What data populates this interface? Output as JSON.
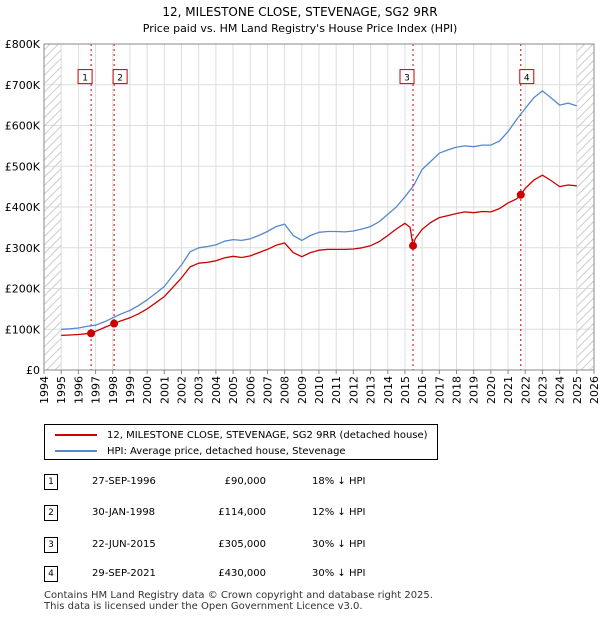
{
  "chart_data": {
    "type": "line",
    "title": "12, MILESTONE CLOSE, STEVENAGE, SG2 9RR",
    "subtitle": "Price paid vs. HM Land Registry's House Price Index (HPI)",
    "xlabel": "",
    "ylabel": "",
    "xlim": [
      1994,
      2026
    ],
    "ylim": [
      0,
      800000
    ],
    "x_ticks": [
      "1994",
      "1995",
      "1996",
      "1997",
      "1998",
      "1999",
      "2000",
      "2001",
      "2002",
      "2003",
      "2004",
      "2005",
      "2006",
      "2007",
      "2008",
      "2009",
      "2010",
      "2011",
      "2012",
      "2013",
      "2014",
      "2015",
      "2016",
      "2017",
      "2018",
      "2019",
      "2020",
      "2021",
      "2022",
      "2023",
      "2024",
      "2025",
      "2026"
    ],
    "y_ticks": [
      "£0",
      "£100K",
      "£200K",
      "£300K",
      "£400K",
      "£500K",
      "£600K",
      "£700K",
      "£800K"
    ],
    "y_tick_values": [
      0,
      100000,
      200000,
      300000,
      400000,
      500000,
      600000,
      700000,
      800000
    ],
    "series": [
      {
        "name": "HPI: Average price, detached house, Stevenage",
        "color": "#5588cc",
        "x": [
          1995.0,
          1995.5,
          1996.0,
          1996.5,
          1997.0,
          1997.5,
          1998.0,
          1998.5,
          1999.0,
          1999.5,
          2000.0,
          2000.5,
          2001.0,
          2001.5,
          2002.0,
          2002.5,
          2003.0,
          2003.5,
          2004.0,
          2004.5,
          2005.0,
          2005.5,
          2006.0,
          2006.5,
          2007.0,
          2007.5,
          2008.0,
          2008.5,
          2009.0,
          2009.5,
          2010.0,
          2010.5,
          2011.0,
          2011.5,
          2012.0,
          2012.5,
          2013.0,
          2013.5,
          2014.0,
          2014.5,
          2015.0,
          2015.5,
          2016.0,
          2016.5,
          2017.0,
          2017.5,
          2018.0,
          2018.5,
          2019.0,
          2019.5,
          2020.0,
          2020.5,
          2021.0,
          2021.5,
          2022.0,
          2022.5,
          2023.0,
          2023.5,
          2024.0,
          2024.5,
          2025.0
        ],
        "y": [
          100000,
          101000,
          103000,
          107000,
          110000,
          118000,
          128000,
          138000,
          146000,
          158000,
          172000,
          188000,
          205000,
          232000,
          258000,
          290000,
          300000,
          303000,
          307000,
          316000,
          320000,
          318000,
          322000,
          330000,
          340000,
          352000,
          358000,
          330000,
          318000,
          330000,
          338000,
          340000,
          340000,
          339000,
          341000,
          346000,
          352000,
          364000,
          382000,
          400000,
          425000,
          452000,
          492000,
          512000,
          532000,
          540000,
          547000,
          550000,
          548000,
          552000,
          552000,
          562000,
          585000,
          615000,
          642000,
          668000,
          685000,
          668000,
          650000,
          655000,
          648000
        ]
      },
      {
        "name": "12, MILESTONE CLOSE, STEVENAGE, SG2 9RR (detached house)",
        "color": "#cc0000",
        "x": [
          1995.0,
          1995.5,
          1996.0,
          1996.5,
          1996.74,
          1997.0,
          1997.5,
          1998.08,
          1998.5,
          1999.0,
          1999.5,
          2000.0,
          2000.5,
          2001.0,
          2001.5,
          2002.0,
          2002.5,
          2003.0,
          2003.5,
          2004.0,
          2004.5,
          2005.0,
          2005.5,
          2006.0,
          2006.5,
          2007.0,
          2007.5,
          2008.0,
          2008.5,
          2009.0,
          2009.5,
          2010.0,
          2010.5,
          2011.0,
          2011.5,
          2012.0,
          2012.5,
          2013.0,
          2013.5,
          2014.0,
          2014.5,
          2015.0,
          2015.3,
          2015.47,
          2015.6,
          2016.0,
          2016.5,
          2017.0,
          2017.5,
          2018.0,
          2018.5,
          2019.0,
          2019.5,
          2020.0,
          2020.5,
          2021.0,
          2021.5,
          2021.74,
          2022.0,
          2022.5,
          2023.0,
          2023.5,
          2024.0,
          2024.5,
          2025.0
        ],
        "y": [
          85000,
          86000,
          87000,
          89000,
          90000,
          95000,
          104000,
          114000,
          121000,
          128000,
          138000,
          150000,
          165000,
          180000,
          203000,
          226000,
          253000,
          262000,
          264000,
          268000,
          275000,
          279000,
          276000,
          280000,
          288000,
          296000,
          306000,
          312000,
          288000,
          278000,
          288000,
          294000,
          296000,
          296000,
          296000,
          297000,
          300000,
          305000,
          315000,
          330000,
          346000,
          360000,
          350000,
          305000,
          322000,
          345000,
          362000,
          374000,
          379000,
          384000,
          388000,
          386000,
          389000,
          388000,
          396000,
          410000,
          420000,
          430000,
          446000,
          466000,
          478000,
          465000,
          450000,
          454000,
          452000
        ]
      }
    ],
    "sales": [
      {
        "num": "1",
        "x": 1996.74,
        "price": 90000,
        "date": "27-SEP-1996",
        "price_label": "£90,000",
        "hpi": "18% ↓ HPI"
      },
      {
        "num": "2",
        "x": 1998.08,
        "price": 114000,
        "date": "30-JAN-1998",
        "price_label": "£114,000",
        "hpi": "12% ↓ HPI"
      },
      {
        "num": "3",
        "x": 2015.47,
        "price": 305000,
        "date": "22-JUN-2015",
        "price_label": "£305,000",
        "hpi": "30% ↓ HPI"
      },
      {
        "num": "4",
        "x": 2021.74,
        "price": 430000,
        "date": "29-SEP-2021",
        "price_label": "£430,000",
        "hpi": "30% ↓ HPI"
      }
    ],
    "hatch_regions": [
      [
        1994,
        1995
      ],
      [
        2025,
        2026
      ]
    ],
    "marker_label_value": 720000,
    "marker_color": "#cc0000",
    "hatch_color": "#cccccc",
    "legend_position": "below-chart"
  },
  "footer": {
    "line1": "Contains HM Land Registry data © Crown copyright and database right 2025.",
    "line2": "This data is licensed under the Open Government Licence v3.0."
  }
}
